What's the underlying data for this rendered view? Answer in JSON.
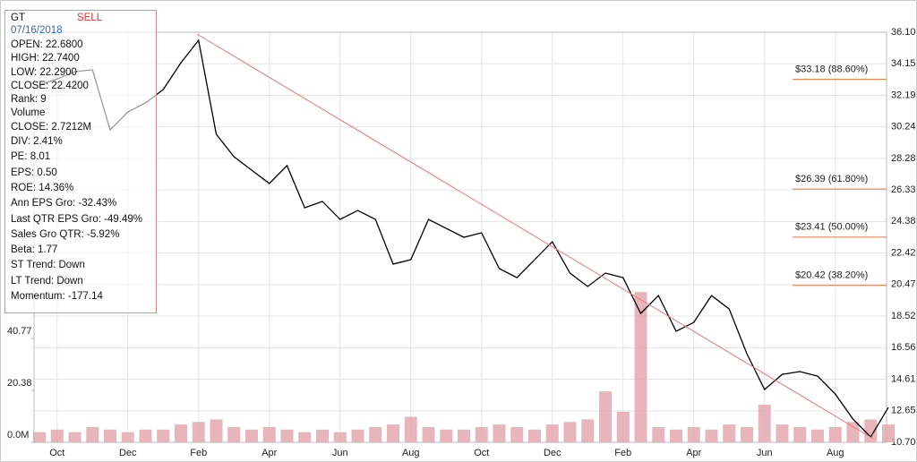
{
  "chart_data": {
    "type": "line",
    "categories": [
      null,
      "Oct",
      null,
      null,
      null,
      "Dec",
      null,
      null,
      null,
      "Feb",
      null,
      null,
      null,
      "Apr",
      null,
      null,
      null,
      "Jun",
      null,
      null,
      null,
      "Aug",
      null,
      null,
      null,
      "Oct",
      null,
      null,
      null,
      "Dec",
      null,
      null,
      null,
      "Feb",
      null,
      null,
      null,
      "Apr",
      null,
      null,
      null,
      "Jun",
      null,
      null,
      null,
      "Aug",
      null,
      null,
      null
    ],
    "series": [
      {
        "color": "#000000",
        "values": [
          32.83,
          33.2,
          33.66,
          33.77,
          30.05,
          31.16,
          31.72,
          32.55,
          34.21,
          35.6,
          29.78,
          28.39,
          27.56,
          26.73,
          27.84,
          25.23,
          25.62,
          24.51,
          25.06,
          24.51,
          21.74,
          22.01,
          24.51,
          23.95,
          23.4,
          23.68,
          21.46,
          20.9,
          22.01,
          23.12,
          21.18,
          20.35,
          21.18,
          20.9,
          18.68,
          19.79,
          17.58,
          18.13,
          19.79,
          18.96,
          16.19,
          13.97,
          14.91,
          15.08,
          14.8,
          13.69,
          12.14,
          11.03,
          12.86
        ]
      },
      {
        "color": "#e4a3ad",
        "axis": "y2",
        "values": [
          4,
          5,
          4,
          6,
          5,
          4,
          5,
          5,
          7,
          8,
          9,
          6,
          5,
          6,
          5,
          4,
          5,
          4,
          5,
          6,
          7,
          10,
          6,
          5,
          5,
          6,
          7,
          6,
          5,
          7,
          8,
          9,
          20,
          12,
          59,
          6,
          5,
          6,
          5,
          7,
          6,
          14.8,
          7,
          6,
          5,
          6,
          8,
          9,
          7
        ]
      }
    ],
    "ylim": [
      10.7,
      36.1
    ],
    "yticks": [
      {
        "value": 36.1,
        "label": "36.10"
      },
      34.15,
      32.19,
      30.24,
      28.28,
      26.33,
      24.38,
      22.42,
      20.47,
      18.52,
      16.56,
      14.61,
      12.65,
      {
        "value": 10.7,
        "label": "10.70"
      }
    ],
    "y2lim": [
      0,
      161
    ],
    "y2ticks": [
      {
        "value": 0,
        "label": "0.0M"
      },
      20.38,
      40.77
    ],
    "grid": true,
    "fib_levels": [
      {
        "value": 33.18,
        "label": "$33.18 (88.60%)"
      },
      {
        "value": 26.39,
        "label": "$26.39 (61.80%)"
      },
      {
        "value": 23.41,
        "label": "$23.41 (50.00%)"
      },
      {
        "value": 20.42,
        "label": "$20.42 (38.20%)"
      }
    ]
  },
  "info_box": {
    "ticker": "GT",
    "signal": "SELL",
    "date": "07/16/2018",
    "lines": [
      "OPEN: 22.6800",
      "HIGH: 22.7400",
      "LOW: 22.2900",
      "CLOSE: 22.4200",
      "Rank: 9",
      "Volume",
      "CLOSE: 2.7212M",
      "DIV: 2.41%",
      "PE: 8.01",
      "EPS: 0.50",
      "ROE: 14.36%",
      "Ann EPS Gro: -32.43%",
      "Last QTR EPS Gro: -49.49%",
      "Sales Gro QTR: -5.92%",
      "Beta: 1.77",
      "ST Trend: Down",
      "LT Trend: Down",
      "Momentum: -177.14"
    ]
  }
}
